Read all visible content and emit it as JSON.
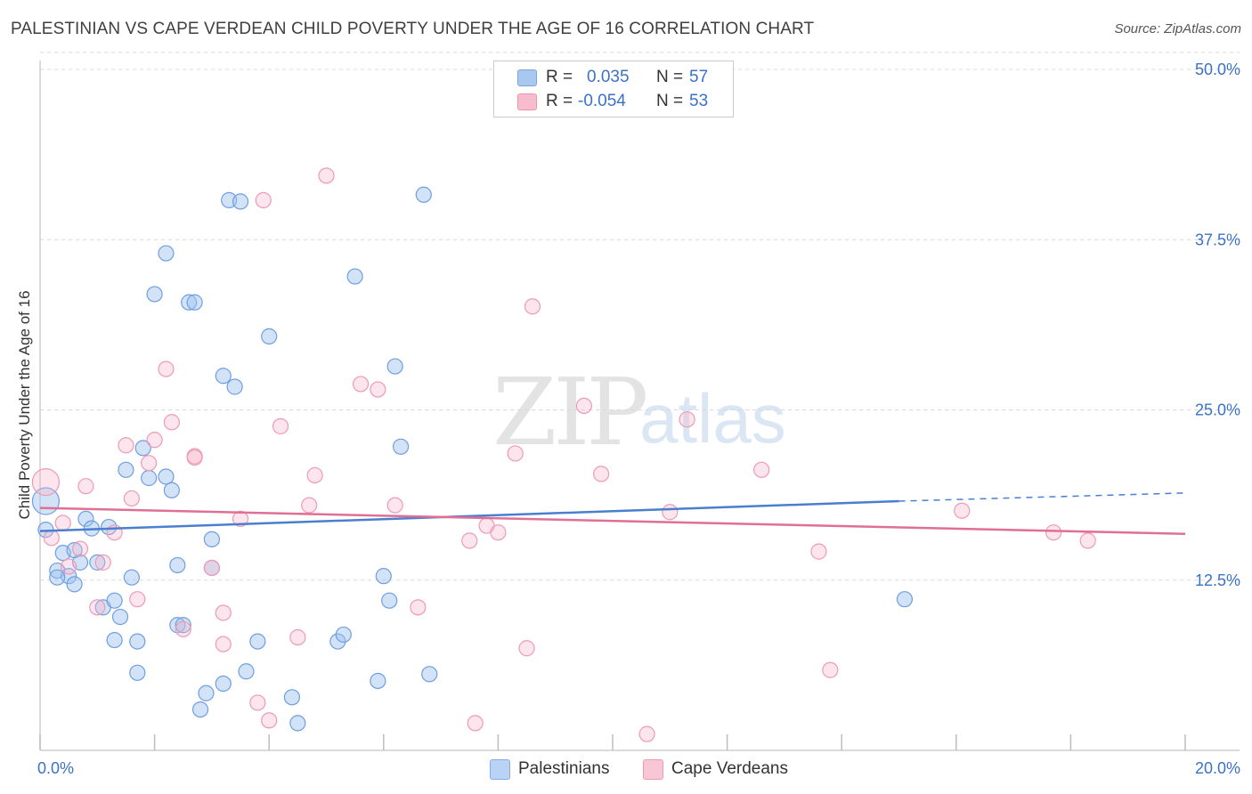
{
  "header": {
    "title": "PALESTINIAN VS CAPE VERDEAN CHILD POVERTY UNDER THE AGE OF 16 CORRELATION CHART",
    "source": "Source: ZipAtlas.com"
  },
  "watermark": {
    "zip": "ZIP",
    "atlas": "atlas"
  },
  "legend": {
    "rows": [
      {
        "r_label": "R =",
        "r_value": "0.035",
        "n_label": "N =",
        "n_value": "57",
        "color": "#a9c8f0",
        "border": "#7aa6e0"
      },
      {
        "r_label": "R =",
        "r_value": "-0.054",
        "n_label": "N =",
        "n_value": "53",
        "color": "#f7bccd",
        "border": "#ee92ad"
      }
    ]
  },
  "bottom_legend": [
    {
      "label": "Palestinians",
      "color": "#b9d3f4",
      "border": "#86aee4"
    },
    {
      "label": "Cape Verdeans",
      "color": "#f8c6d4",
      "border": "#ee9ab3"
    }
  ],
  "chart_data": {
    "type": "scatter",
    "title": "PALESTINIAN VS CAPE VERDEAN CHILD POVERTY UNDER THE AGE OF 16 CORRELATION CHART",
    "xlabel": "",
    "ylabel": "Child Poverty Under the Age of 16",
    "xlim": [
      0,
      20
    ],
    "ylim": [
      0,
      50
    ],
    "x_tick_labels": [
      {
        "value": 0,
        "label": "0.0%"
      },
      {
        "value": 20,
        "label": "20.0%"
      }
    ],
    "y_tick_labels": [
      {
        "value": 12.5,
        "label": "12.5%"
      },
      {
        "value": 25,
        "label": "25.0%"
      },
      {
        "value": 37.5,
        "label": "37.5%"
      },
      {
        "value": 50,
        "label": "50.0%"
      }
    ],
    "x_minor_ticks": [
      0,
      2,
      4,
      6,
      8,
      10,
      12,
      14,
      16,
      18,
      20
    ],
    "series": [
      {
        "name": "Palestinians",
        "color": "#4a7fd0",
        "fill": "rgba(155,192,240,0.45)",
        "stroke": "#6f9ee0",
        "trend": {
          "x0": 0,
          "y0": 16.1,
          "x1": 15,
          "y1": 18.3,
          "dash_to": 20,
          "dash_y": 18.9
        },
        "points": [
          [
            0.1,
            18.3,
            "big"
          ],
          [
            0.1,
            16.2
          ],
          [
            0.4,
            14.5
          ],
          [
            0.3,
            13.2
          ],
          [
            0.5,
            12.8
          ],
          [
            0.3,
            12.7
          ],
          [
            0.6,
            14.7
          ],
          [
            0.6,
            12.2
          ],
          [
            0.8,
            17.0
          ],
          [
            0.9,
            16.3
          ],
          [
            0.7,
            13.8
          ],
          [
            1.0,
            13.8
          ],
          [
            1.2,
            16.4
          ],
          [
            1.5,
            20.6
          ],
          [
            1.9,
            20.0
          ],
          [
            2.2,
            20.1
          ],
          [
            2.3,
            19.1
          ],
          [
            1.8,
            22.2
          ],
          [
            1.1,
            10.5
          ],
          [
            1.3,
            11.0
          ],
          [
            1.4,
            9.8
          ],
          [
            1.6,
            12.7
          ],
          [
            2.4,
            13.6
          ],
          [
            3.0,
            13.4
          ],
          [
            3.0,
            15.5
          ],
          [
            2.4,
            9.2
          ],
          [
            2.5,
            9.2
          ],
          [
            1.3,
            8.1
          ],
          [
            1.7,
            8.0
          ],
          [
            1.7,
            5.7
          ],
          [
            3.8,
            8.0
          ],
          [
            3.6,
            5.8
          ],
          [
            3.2,
            4.9
          ],
          [
            2.9,
            4.2
          ],
          [
            2.8,
            3.0
          ],
          [
            4.4,
            3.9
          ],
          [
            4.5,
            2.0
          ],
          [
            5.2,
            8.0
          ],
          [
            5.3,
            8.5
          ],
          [
            5.9,
            5.1
          ],
          [
            6.8,
            5.6
          ],
          [
            6.0,
            12.8
          ],
          [
            6.1,
            11.0
          ],
          [
            6.3,
            22.3
          ],
          [
            6.2,
            28.2
          ],
          [
            5.5,
            34.8
          ],
          [
            4.0,
            30.4
          ],
          [
            3.4,
            26.7
          ],
          [
            3.2,
            27.5
          ],
          [
            2.6,
            32.9
          ],
          [
            2.7,
            32.9
          ],
          [
            2.0,
            33.5
          ],
          [
            2.2,
            36.5
          ],
          [
            3.3,
            40.4
          ],
          [
            3.5,
            40.3
          ],
          [
            6.7,
            40.8
          ],
          [
            15.1,
            11.1
          ]
        ]
      },
      {
        "name": "Cape Verdeans",
        "color": "#e06f96",
        "fill": "rgba(246,180,200,0.35)",
        "stroke": "#ef9ab4",
        "trend": {
          "x0": 0,
          "y0": 17.8,
          "x1": 20,
          "y1": 15.9
        },
        "points": [
          [
            0.1,
            19.7,
            "big"
          ],
          [
            0.2,
            15.6
          ],
          [
            0.4,
            16.7
          ],
          [
            0.5,
            13.5
          ],
          [
            0.7,
            14.8
          ],
          [
            0.8,
            19.4
          ],
          [
            1.0,
            10.5
          ],
          [
            1.1,
            13.8
          ],
          [
            1.3,
            16.0
          ],
          [
            1.5,
            22.4
          ],
          [
            1.6,
            18.5
          ],
          [
            1.7,
            11.1
          ],
          [
            1.9,
            21.1
          ],
          [
            2.0,
            22.8
          ],
          [
            2.2,
            28.0
          ],
          [
            2.3,
            24.1
          ],
          [
            2.5,
            8.9
          ],
          [
            2.7,
            21.6
          ],
          [
            2.7,
            21.5
          ],
          [
            3.0,
            13.4
          ],
          [
            3.2,
            10.1
          ],
          [
            3.2,
            7.8
          ],
          [
            3.5,
            17.0
          ],
          [
            3.8,
            3.5
          ],
          [
            3.9,
            40.4
          ],
          [
            4.0,
            2.2
          ],
          [
            4.2,
            23.8
          ],
          [
            4.5,
            8.3
          ],
          [
            4.7,
            18.0
          ],
          [
            4.8,
            20.2
          ],
          [
            5.0,
            42.2
          ],
          [
            5.6,
            26.9
          ],
          [
            5.9,
            26.5
          ],
          [
            6.2,
            18.0
          ],
          [
            6.6,
            10.5
          ],
          [
            7.5,
            15.4
          ],
          [
            7.6,
            2.0
          ],
          [
            7.8,
            16.5
          ],
          [
            8.0,
            16.0
          ],
          [
            8.3,
            21.8
          ],
          [
            8.5,
            7.5
          ],
          [
            8.6,
            32.6
          ],
          [
            9.5,
            25.3
          ],
          [
            9.8,
            20.3
          ],
          [
            10.6,
            1.2
          ],
          [
            11.0,
            17.5
          ],
          [
            11.3,
            24.3
          ],
          [
            12.6,
            20.6
          ],
          [
            13.6,
            14.6
          ],
          [
            13.8,
            5.9
          ],
          [
            16.1,
            17.6
          ],
          [
            17.7,
            16.0
          ],
          [
            18.3,
            15.4
          ]
        ]
      }
    ]
  }
}
